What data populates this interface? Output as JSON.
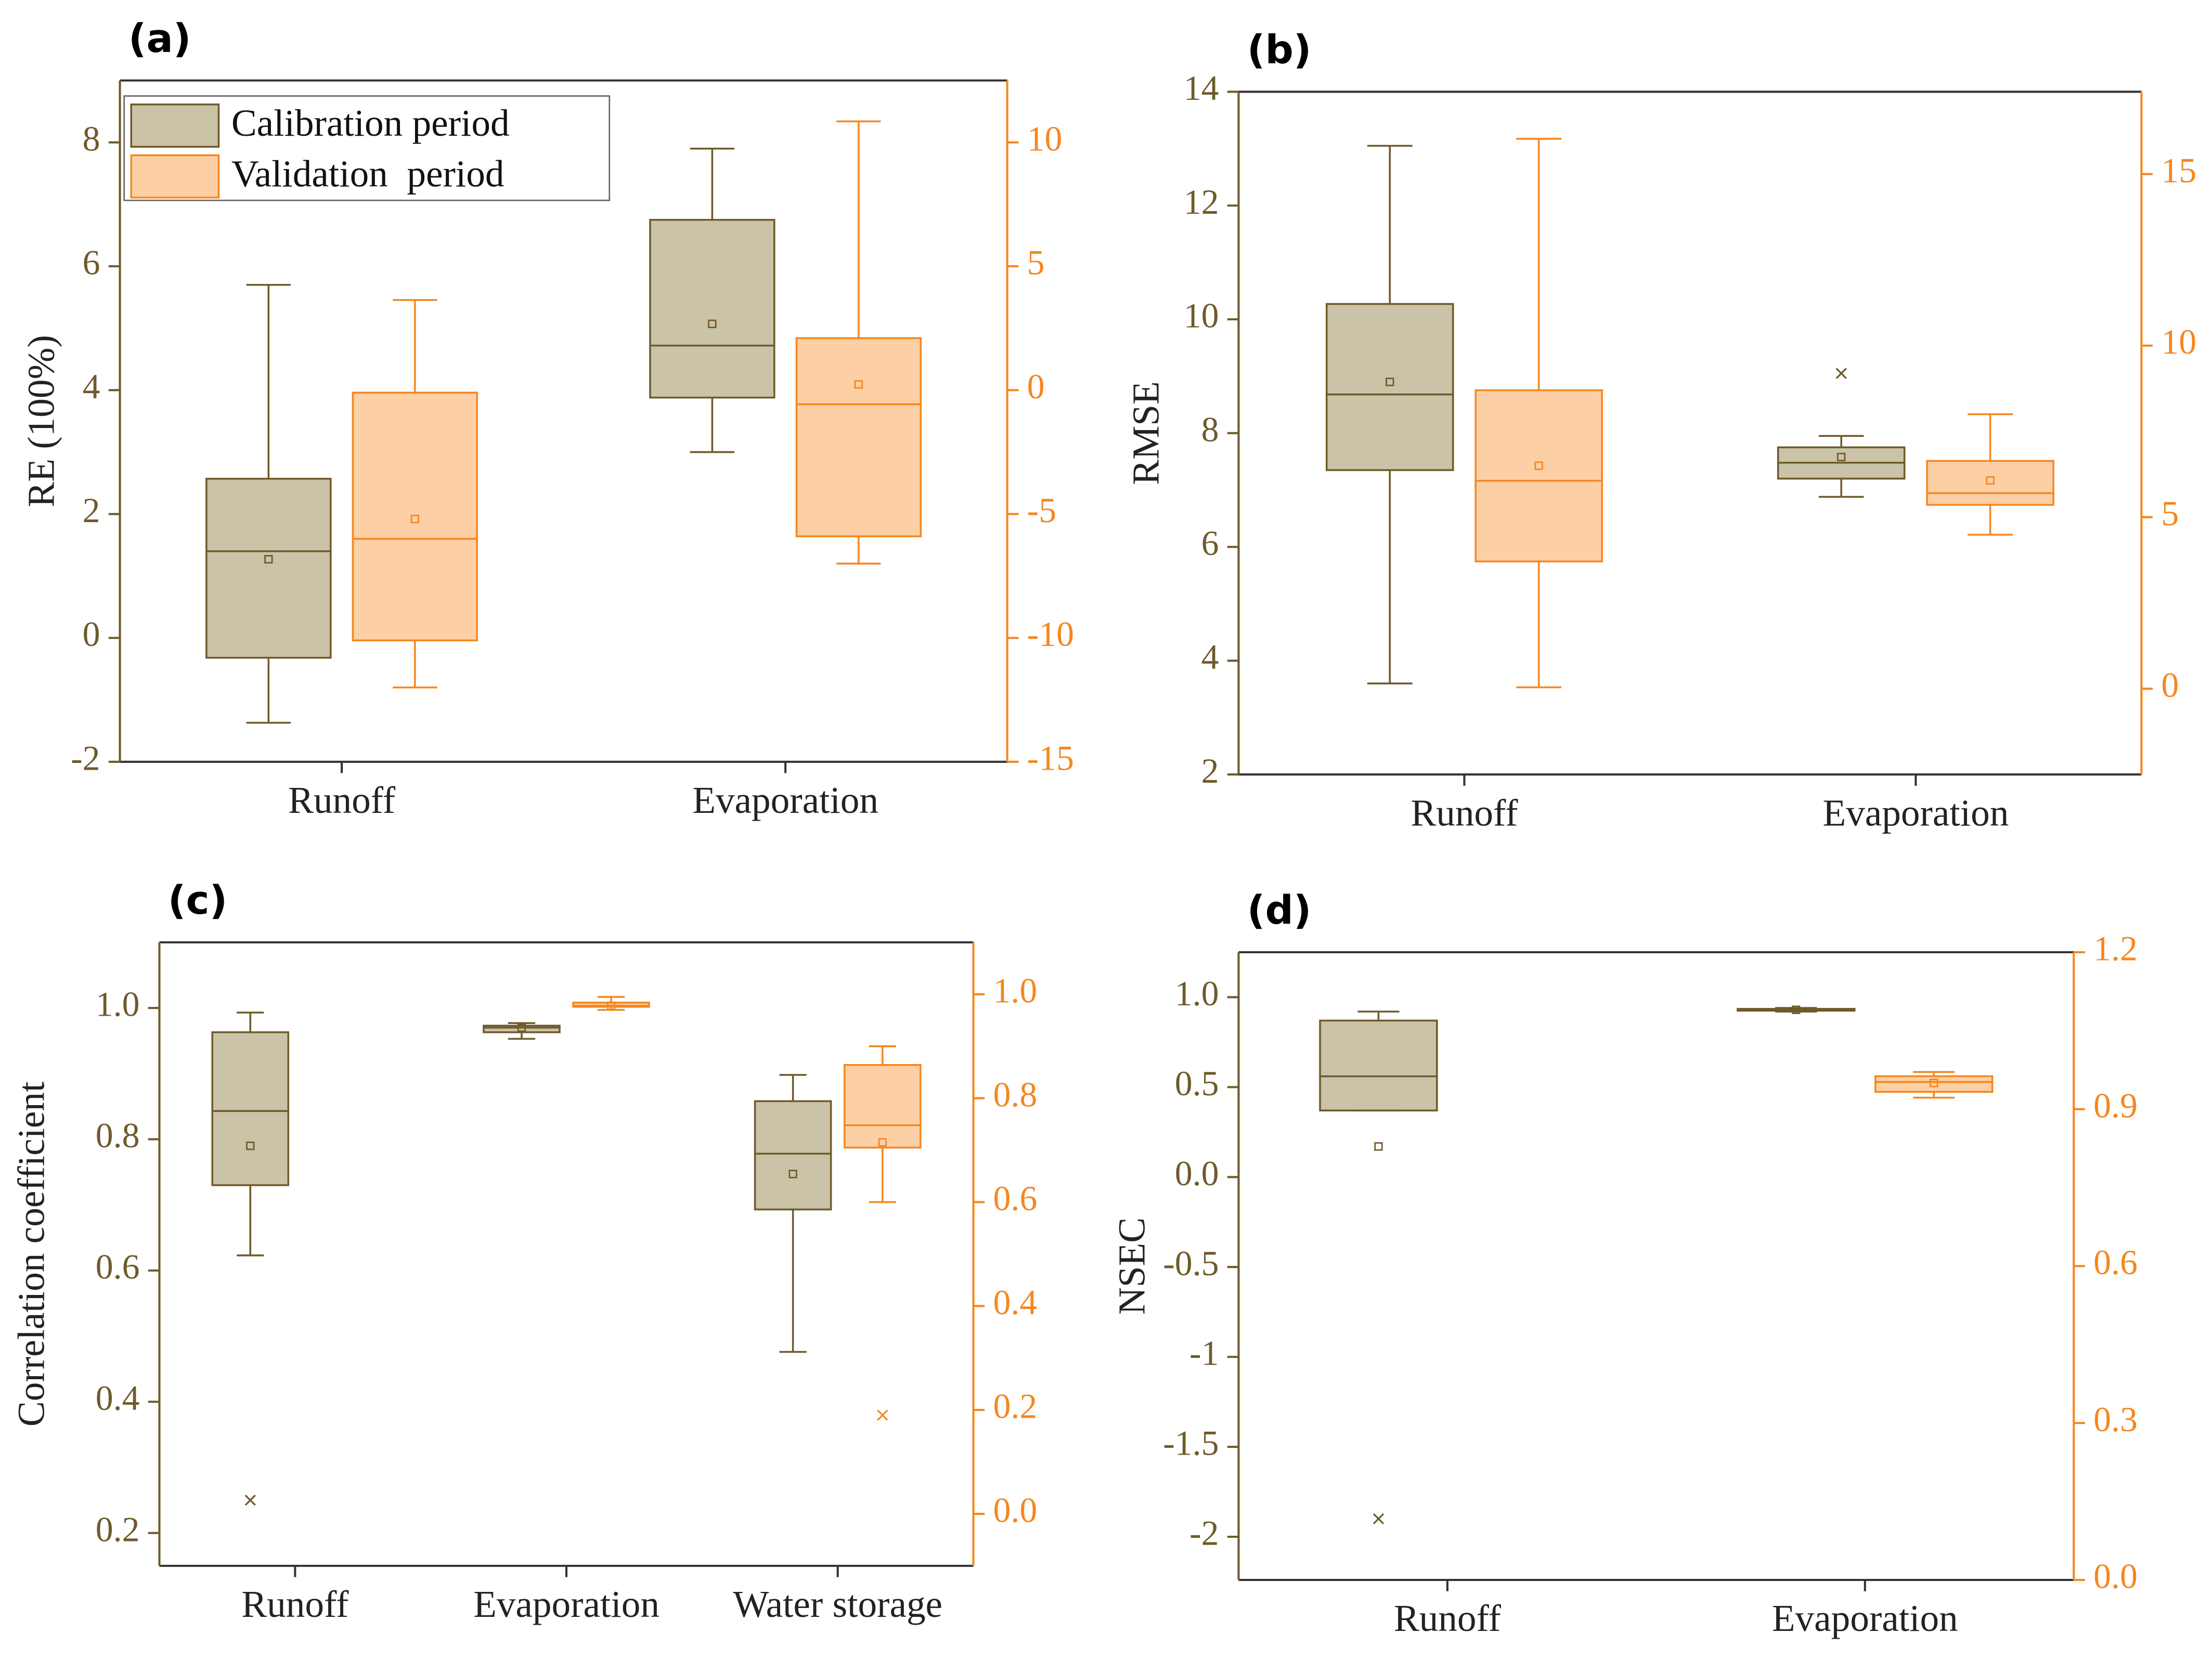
{
  "chart_data": [
    {
      "type": "box",
      "title": "(a)",
      "ylabel": "RE (100%)",
      "categories": [
        "Runoff",
        "Evaporation"
      ],
      "ylim": [
        -2,
        9
      ],
      "yticks": [
        -2,
        0,
        2,
        4,
        6,
        8
      ],
      "y2lim": [
        -15,
        12.5
      ],
      "y2ticks": [
        -15,
        -10,
        -5,
        0,
        5,
        10
      ],
      "legend": "upper left",
      "series": [
        {
          "name": "Calibration period",
          "color": "#6e5a2a",
          "fill": "#cbc3a8",
          "axis": "y",
          "boxes": [
            {
              "min": -1.37,
              "q1": -0.32,
              "median": 1.4,
              "q3": 2.57,
              "max": 5.7,
              "mean": 1.27
            },
            {
              "min": 3.0,
              "q1": 3.88,
              "median": 4.72,
              "q3": 6.75,
              "max": 7.9,
              "mean": 5.07
            }
          ]
        },
        {
          "name": "Validation  period",
          "color": "#f5871f",
          "fill": "#fdcfa5",
          "axis": "y2",
          "boxes": [
            {
              "min": -12.0,
              "q1": -10.1,
              "median": -6.0,
              "q3": -0.1,
              "max": 3.64,
              "mean": -5.2
            },
            {
              "min": -7.0,
              "q1": -5.9,
              "median": -0.57,
              "q3": 2.1,
              "max": 10.85,
              "mean": 0.23
            }
          ]
        }
      ]
    },
    {
      "type": "box",
      "title": "(b)",
      "ylabel": "RMSE",
      "categories": [
        "Runoff",
        "Evaporation"
      ],
      "ylim": [
        2,
        14
      ],
      "yticks": [
        2,
        4,
        6,
        8,
        10,
        12,
        14
      ],
      "y2lim": [
        -2.5,
        17.4
      ],
      "y2ticks": [
        0,
        5,
        10,
        15
      ],
      "series": [
        {
          "color": "#6e5a2a",
          "fill": "#cbc3a8",
          "axis": "y",
          "boxes": [
            {
              "min": 3.6,
              "q1": 7.35,
              "median": 8.68,
              "q3": 10.27,
              "max": 13.05,
              "mean": 8.9
            },
            {
              "min": 6.88,
              "q1": 7.2,
              "median": 7.48,
              "q3": 7.75,
              "max": 7.95,
              "mean": 7.58,
              "outliers": [
                9.05
              ]
            }
          ]
        },
        {
          "color": "#f5871f",
          "fill": "#fdcfa5",
          "axis": "y2",
          "boxes": [
            {
              "min": 0.04,
              "q1": 3.71,
              "median": 6.06,
              "q3": 8.7,
              "max": 16.03,
              "mean": 6.5
            },
            {
              "min": 4.49,
              "q1": 5.36,
              "median": 5.7,
              "q3": 6.64,
              "max": 8.0,
              "mean": 6.07
            }
          ]
        }
      ]
    },
    {
      "type": "box",
      "title": "(c)",
      "ylabel": "Correlation coefficient",
      "categories": [
        "Runoff",
        "Evaporation",
        "Water storage"
      ],
      "ylim": [
        0.15,
        1.1
      ],
      "yticks": [
        0.2,
        0.4,
        0.6,
        0.8,
        {
          "value": 1,
          "label": "1.0"
        }
      ],
      "y2lim": [
        -0.1,
        1.1
      ],
      "y2ticks": [
        {
          "value": 0,
          "label": "0.0"
        },
        0.2,
        0.4,
        0.6,
        0.8,
        {
          "value": 1,
          "label": "1.0"
        }
      ],
      "series": [
        {
          "color": "#6e5a2a",
          "fill": "#cbc3a8",
          "axis": "y",
          "boxes": [
            {
              "min": 0.623,
              "q1": 0.73,
              "median": 0.843,
              "q3": 0.963,
              "max": 0.993,
              "mean": 0.79,
              "outliers": [
                0.25
              ]
            },
            {
              "min": 0.953,
              "q1": 0.963,
              "median": 0.97,
              "q3": 0.973,
              "max": 0.977,
              "mean": 0.97
            },
            {
              "min": 0.476,
              "q1": 0.693,
              "median": 0.778,
              "q3": 0.858,
              "max": 0.898,
              "mean": 0.747
            }
          ]
        },
        {
          "color": "#f5871f",
          "fill": "#fdcfa5",
          "axis": "y2",
          "boxes": [
            null,
            {
              "min": 0.97,
              "q1": 0.976,
              "median": 0.978,
              "q3": 0.984,
              "max": 0.995,
              "mean": 0.978
            },
            {
              "min": 0.6,
              "q1": 0.705,
              "median": 0.748,
              "q3": 0.864,
              "max": 0.9,
              "mean": 0.715,
              "outliers": [
                0.19
              ]
            }
          ]
        }
      ]
    },
    {
      "type": "box",
      "title": "(d)",
      "ylabel": "NSEC",
      "categories": [
        "Runoff",
        "Evaporation"
      ],
      "ylim": [
        -2.24,
        1.25
      ],
      "yticks": [
        -2,
        -1.5,
        -1,
        -0.5,
        {
          "value": 0,
          "label": "0.0"
        },
        0.5,
        {
          "value": 1,
          "label": "1.0"
        }
      ],
      "y2lim": [
        0,
        1.2
      ],
      "y2ticks": [
        {
          "value": 0,
          "label": "0.0"
        },
        0.3,
        0.6,
        0.9,
        1.2
      ],
      "series": [
        {
          "color": "#6e5a2a",
          "fill": "#cbc3a8",
          "axis": "y",
          "boxes": [
            {
              "min": 0.37,
              "q1": 0.37,
              "median": 0.56,
              "q3": 0.87,
              "max": 0.92,
              "mean": 0.17,
              "outliers": [
                -1.9
              ]
            },
            {
              "min": 0.92,
              "q1": 0.925,
              "median": 0.93,
              "q3": 0.935,
              "max": 0.94,
              "mean": 0.93
            }
          ]
        },
        {
          "color": "#f5871f",
          "fill": "#fdcfa5",
          "axis": "y2",
          "boxes": [
            null,
            {
              "min": 0.922,
              "q1": 0.933,
              "median": 0.952,
              "q3": 0.963,
              "max": 0.971,
              "mean": 0.95
            }
          ]
        }
      ]
    }
  ]
}
